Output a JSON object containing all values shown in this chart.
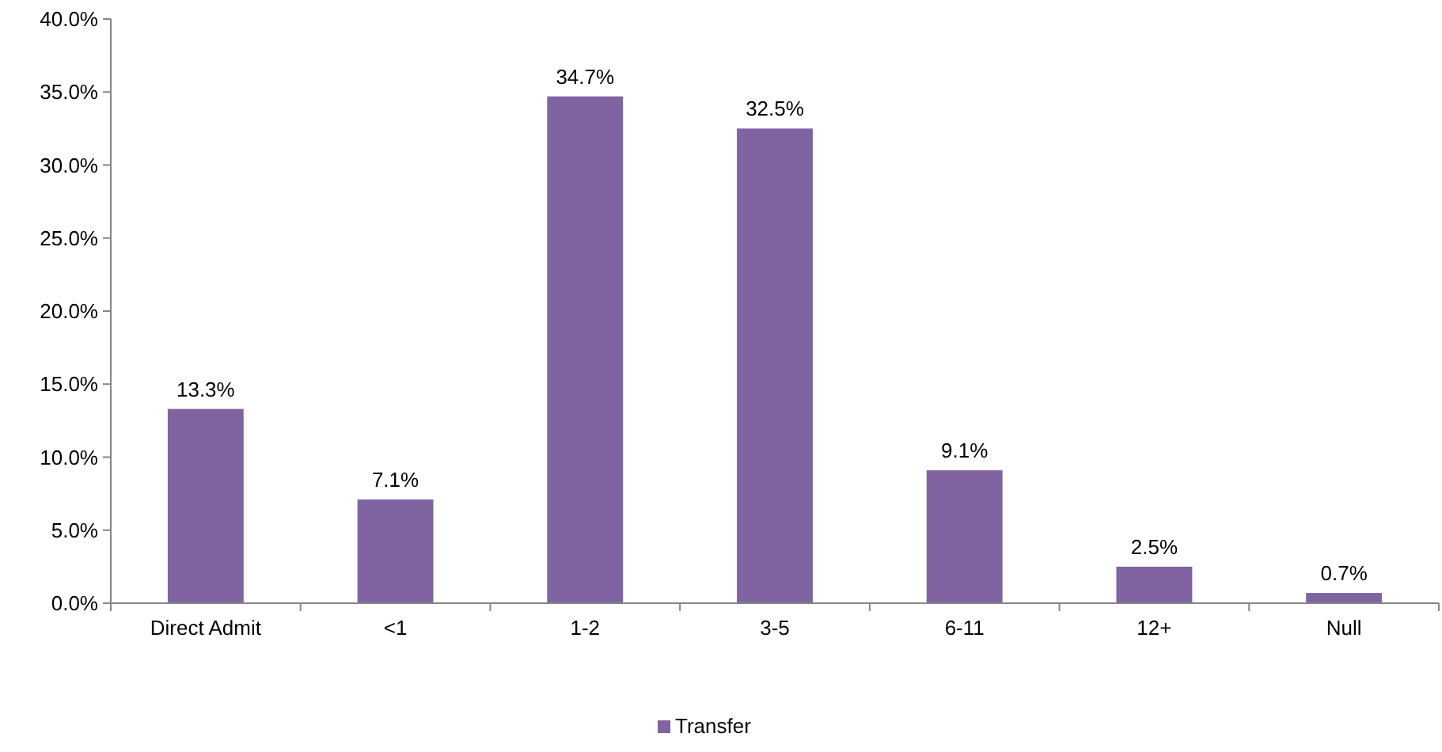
{
  "chart_data": {
    "type": "bar",
    "categories": [
      "Direct Admit",
      "<1",
      "1-2",
      "3-5",
      "6-11",
      "12+",
      "Null"
    ],
    "series": [
      {
        "name": "Transfer",
        "color": "#8064a2",
        "values": [
          13.3,
          7.1,
          34.7,
          32.5,
          9.1,
          2.5,
          0.7
        ],
        "value_labels": [
          "13.3%",
          "7.1%",
          "34.7%",
          "32.5%",
          "9.1%",
          "2.5%",
          "0.7%"
        ]
      }
    ],
    "ylim": [
      0,
      40
    ],
    "yticks": [
      {
        "value": 0,
        "label": "0.0%"
      },
      {
        "value": 5,
        "label": "5.0%"
      },
      {
        "value": 10,
        "label": "10.0%"
      },
      {
        "value": 15,
        "label": "15.0%"
      },
      {
        "value": 20,
        "label": "20.0%"
      },
      {
        "value": 25,
        "label": "25.0%"
      },
      {
        "value": 30,
        "label": "30.0%"
      },
      {
        "value": 35,
        "label": "35.0%"
      },
      {
        "value": 40,
        "label": "40.0%"
      }
    ],
    "grid": false,
    "legend": "bottom"
  }
}
